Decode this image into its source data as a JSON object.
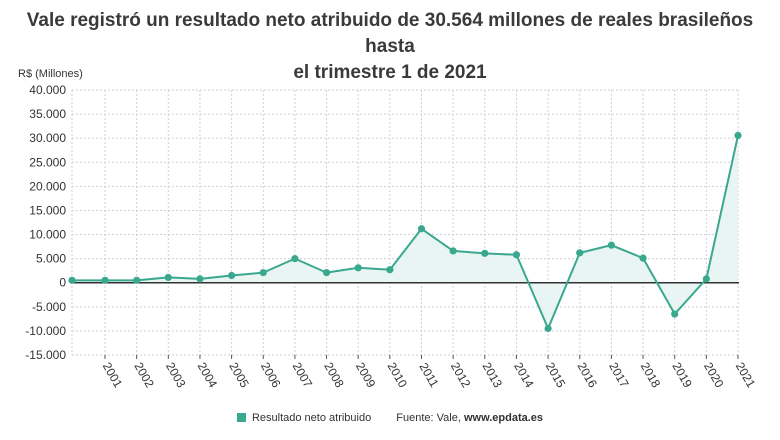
{
  "title_line1": "Vale registró un resultado neto atribuido de 30.564 millones de reales brasileños hasta",
  "title_line2": "el trimestre 1 de 2021",
  "legend": {
    "label": "Resultado neto atribuido"
  },
  "source": {
    "prefix": "Fuente: Vale, ",
    "name": "www.epdata.es"
  },
  "colors": {
    "line": "#3aa88f",
    "fill": "#e8f5f2",
    "zero": "#333333",
    "grid": "#cfcfd6"
  },
  "chart_data": {
    "type": "line",
    "ylabel": "R$ (Millones)",
    "ylim": [
      -15000,
      40000
    ],
    "yticks": [
      40000,
      35000,
      30000,
      25000,
      20000,
      15000,
      10000,
      5000,
      0,
      -5000,
      -10000,
      -15000
    ],
    "ytick_labels": [
      "40.000",
      "35.000",
      "30.000",
      "25.000",
      "20.000",
      "15.000",
      "10.000",
      "5.000",
      "0",
      "-5.000",
      "-10.000",
      "-15.000"
    ],
    "x": [
      "2001",
      "2002",
      "2003",
      "2004",
      "2005",
      "2006",
      "2007",
      "2008",
      "2009",
      "2010",
      "2011",
      "2012",
      "2013",
      "2014",
      "2015",
      "2016",
      "2017",
      "2018",
      "2019",
      "2020",
      "2021"
    ],
    "series": [
      {
        "name": "Resultado neto atribuido",
        "points": [
          {
            "x": "2001",
            "y": 500
          },
          {
            "x": "2001",
            "y": 500
          },
          {
            "x": "2002",
            "y": 500
          },
          {
            "x": "2003",
            "y": 1100
          },
          {
            "x": "2004",
            "y": 800
          },
          {
            "x": "2005",
            "y": 1500
          },
          {
            "x": "2006",
            "y": 2100
          },
          {
            "x": "2007",
            "y": 5000
          },
          {
            "x": "2008",
            "y": 2100
          },
          {
            "x": "2009",
            "y": 3100
          },
          {
            "x": "2010",
            "y": 2700
          },
          {
            "x": "2011",
            "y": 11200
          },
          {
            "x": "2012",
            "y": 6600
          },
          {
            "x": "2013",
            "y": 6100
          },
          {
            "x": "2014",
            "y": 5800
          },
          {
            "x": "2015",
            "y": -9500
          },
          {
            "x": "2016",
            "y": 6200
          },
          {
            "x": "2017",
            "y": 7800
          },
          {
            "x": "2018",
            "y": 5100
          },
          {
            "x": "2019",
            "y": -6500
          },
          {
            "x": "2020",
            "y": 800
          },
          {
            "x": "2021",
            "y": 30564
          }
        ]
      }
    ],
    "grid": true,
    "legend_position": "bottom"
  }
}
